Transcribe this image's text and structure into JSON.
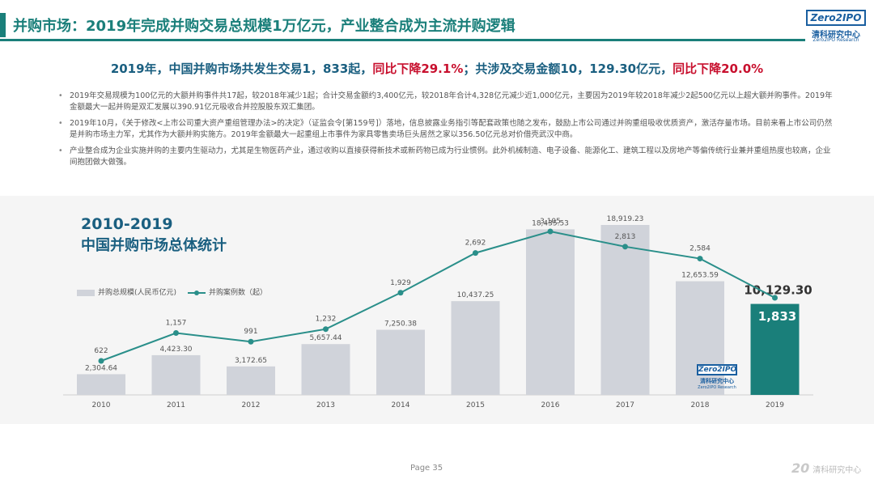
{
  "header": {
    "title": "并购市场：2019年完成并购交易总规模1万亿元，产业整合成为主流并购逻辑",
    "logo_box": "Zero2IPO",
    "logo_cn": "清科研究中心",
    "logo_en": "Zero2IPO Research"
  },
  "watermark": "ZERO2IPO RESEARCH",
  "summary": {
    "part1": "2019年，中国并购市场共发生交易1，833起，",
    "part2": "同比下降29.1%",
    "part3": "；共涉及交易金额10，129.30亿元，",
    "part4": "同比下降20.0%"
  },
  "bullets": [
    "2019年交易规模为100亿元的大额并购事件共17起，较2018年减少1起；合计交易金额约3,400亿元，较2018年合计4,328亿元减少近1,000亿元，主要因为2019年较2018年减少2起500亿元以上超大额并购事件。2019年金额最大一起并购是双汇发展以390.91亿元吸收合并控股股东双汇集团。",
    "2019年10月，《关于修改<上市公司重大资产重组管理办法>的决定》（证监会令[第159号]）落地，信息披露业务指引等配套政策也随之发布，鼓励上市公司通过并购重组吸收优质资产，激活存量市场。目前来看上市公司仍然是并购市场主力军，尤其作为大额并购实施方。2019年金额最大一起重组上市事件为家具零售卖场巨头居然之家以356.50亿元总对价借壳武汉中商。",
    "产业整合成为企业实施并购的主要内生驱动力，尤其是生物医药产业，通过收购以直接获得新技术或新药物已成为行业惯例。此外机械制造、电子设备、能源化工、建筑工程以及房地产等偏传统行业兼并重组热度也较高，企业间抱团做大做强。"
  ],
  "chart_title_1": "2010-2019",
  "chart_title_2": "中国并购市场总体统计",
  "legend": {
    "bar_label": "并购总规模(人民币亿元)",
    "line_label": "并购案例数（起）"
  },
  "chart_logo": {
    "box": "Zero2IPO",
    "cn": "清科研究中心",
    "en": "Zero2IPO Research"
  },
  "chart_data": {
    "type": "bar",
    "categories": [
      "2010",
      "2011",
      "2012",
      "2013",
      "2014",
      "2015",
      "2016",
      "2017",
      "2018",
      "2019"
    ],
    "series": [
      {
        "name": "并购总规模(人民币亿元)",
        "type": "bar",
        "values": [
          2304.64,
          4423.3,
          3172.65,
          5657.44,
          7250.38,
          10437.25,
          18435.53,
          18919.23,
          12653.59,
          10129.3
        ],
        "labels": [
          "2,304.64",
          "4,423.30",
          "3,172.65",
          "5,657.44",
          "7,250.38",
          "10,437.25",
          "18,435.53",
          "18,919.23",
          "12,653.59",
          "10,129.30"
        ]
      },
      {
        "name": "并购案例数（起）",
        "type": "line",
        "values": [
          622,
          1157,
          991,
          1232,
          1929,
          2692,
          3105,
          2813,
          2584,
          1833
        ],
        "labels": [
          "622",
          "1,157",
          "991",
          "1,232",
          "1,929",
          "2,692",
          "3,105",
          "2,813",
          "2,584",
          "1,833"
        ]
      }
    ],
    "colors": {
      "bar": "#d0d3da",
      "bar_highlight": "#1a7f7a",
      "line": "#2a8f8a"
    },
    "legend_position": "left"
  },
  "footer": {
    "page": "Page 35",
    "logo_mark": "20",
    "logo_text": "清科研究中心"
  }
}
